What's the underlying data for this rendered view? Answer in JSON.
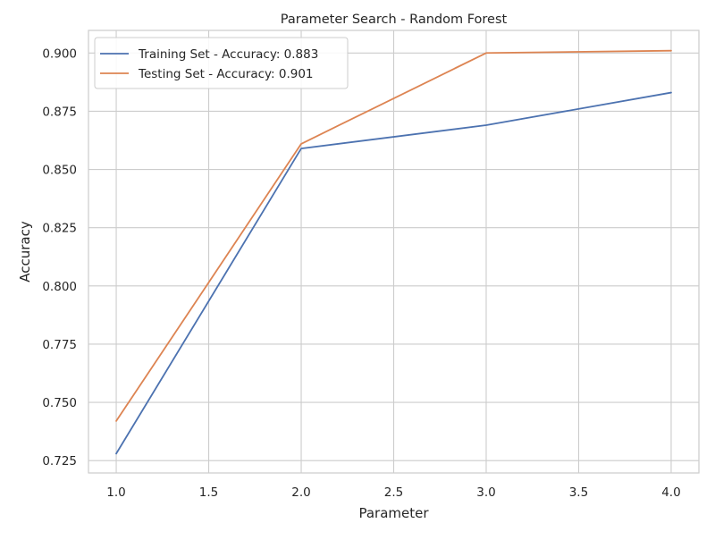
{
  "chart_data": {
    "type": "line",
    "title": "Parameter Search - Random Forest",
    "xlabel": "Parameter",
    "ylabel": "Accuracy",
    "x": [
      1.0,
      2.0,
      3.0,
      4.0
    ],
    "xlim": [
      0.85,
      4.15
    ],
    "ylim": [
      0.7197,
      0.9097
    ],
    "xticks": [
      1.0,
      1.5,
      2.0,
      2.5,
      3.0,
      3.5,
      4.0
    ],
    "xtick_labels": [
      "1.0",
      "1.5",
      "2.0",
      "2.5",
      "3.0",
      "3.5",
      "4.0"
    ],
    "yticks": [
      0.725,
      0.75,
      0.775,
      0.8,
      0.825,
      0.85,
      0.875,
      0.9
    ],
    "ytick_labels": [
      "0.725",
      "0.750",
      "0.775",
      "0.800",
      "0.825",
      "0.850",
      "0.875",
      "0.900"
    ],
    "grid": true,
    "legend_position": "top-left",
    "series": [
      {
        "name": "Training Set - Accuracy: 0.883",
        "color": "#4c72b0",
        "values": [
          0.728,
          0.859,
          0.869,
          0.883
        ]
      },
      {
        "name": "Testing Set - Accuracy: 0.901",
        "color": "#dd8452",
        "values": [
          0.742,
          0.861,
          0.9,
          0.901
        ]
      }
    ]
  }
}
